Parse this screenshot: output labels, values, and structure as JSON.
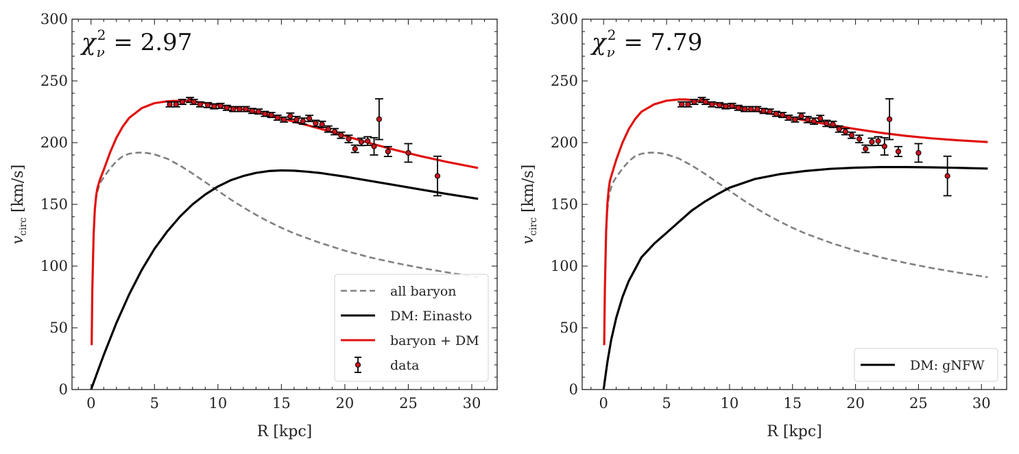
{
  "chart_data": [
    {
      "type": "line",
      "panel": "left",
      "annotation": {
        "symbol": "χ",
        "sub": "ν",
        "sup": "2",
        "text": " = 2.97"
      },
      "xlabel": "R [kpc]",
      "ylabel": {
        "main": "v",
        "sub": "circ",
        "unit": " [km/s]"
      },
      "xlim": [
        -1.5,
        32
      ],
      "ylim": [
        0,
        300
      ],
      "xticks": [
        0,
        5,
        10,
        15,
        20,
        25,
        30
      ],
      "yticks": [
        0,
        50,
        100,
        150,
        200,
        250,
        300
      ],
      "legend_position": "lower-right",
      "legend": [
        {
          "label": "all baryon",
          "style": "dashed",
          "color": "#808080",
          "series": "baryon"
        },
        {
          "label": "DM: Einasto",
          "style": "solid",
          "color": "#000000",
          "series": "dm"
        },
        {
          "label": "baryon + DM",
          "style": "solid",
          "color": "#e0110f",
          "series": "total"
        },
        {
          "label": "data",
          "style": "errorbar",
          "color": "#c8141e",
          "series": "data"
        }
      ],
      "series": [
        {
          "name": "all baryon",
          "key": "baryon",
          "color": "#808080",
          "dashed": true,
          "x": [
            0.05,
            0.1,
            0.2,
            0.3,
            0.4,
            0.5,
            0.7,
            1.0,
            1.5,
            2.0,
            2.5,
            3.0,
            3.5,
            4.0,
            4.5,
            5.0,
            6.0,
            7.0,
            8.0,
            9.0,
            10.0,
            11.0,
            12.0,
            13.0,
            14.0,
            15.0,
            16.0,
            18.0,
            20.0,
            22.0,
            24.0,
            26.0,
            28.0,
            30.5
          ],
          "y": [
            36,
            80,
            125,
            145,
            155,
            160,
            167,
            172,
            179,
            185,
            189,
            191,
            191.8,
            192,
            191.5,
            190.5,
            187,
            181.5,
            175,
            168,
            161,
            154,
            147.5,
            141.5,
            136,
            131,
            126.5,
            119,
            112.5,
            107,
            102.5,
            98.5,
            95,
            91
          ]
        },
        {
          "name": "DM: Einasto",
          "key": "dm",
          "color": "#000000",
          "dashed": false,
          "x": [
            0,
            0.5,
            1,
            2,
            3,
            4,
            5,
            6,
            7,
            8,
            9,
            10,
            11,
            12,
            13,
            14,
            15,
            16,
            17,
            18,
            19,
            20,
            22,
            24,
            26,
            28,
            30.5
          ],
          "y": [
            0,
            14,
            28,
            54,
            77,
            97,
            114,
            128,
            140,
            150,
            158,
            164.5,
            169.5,
            173,
            175.5,
            177,
            177.5,
            177.3,
            176.5,
            175.5,
            174,
            172.5,
            169,
            165.5,
            162,
            158.5,
            154.5
          ]
        },
        {
          "name": "baryon + DM",
          "key": "total",
          "color": "#e0110f",
          "dashed": false,
          "x": [
            0.05,
            0.1,
            0.2,
            0.3,
            0.4,
            0.5,
            0.7,
            1.0,
            1.5,
            2.0,
            2.5,
            3.0,
            4.0,
            5.0,
            6.0,
            7.0,
            8.0,
            9.0,
            10.0,
            12.0,
            14.0,
            16.0,
            18.0,
            20.0,
            22.0,
            24.0,
            26.0,
            28.0,
            30.5
          ],
          "y": [
            36,
            80,
            125,
            146,
            157,
            163,
            170,
            178,
            192,
            204,
            213,
            220,
            228,
            232,
            233.5,
            234,
            233.5,
            232,
            230.5,
            227,
            222.5,
            217,
            211.5,
            205.5,
            199.5,
            194,
            189,
            184.5,
            179.5
          ]
        }
      ]
    },
    {
      "type": "line",
      "panel": "right",
      "annotation": {
        "symbol": "χ",
        "sub": "ν",
        "sup": "2",
        "text": " = 7.79"
      },
      "xlabel": "R [kpc]",
      "ylabel": {
        "main": "v",
        "sub": "circ",
        "unit": " [km/s]"
      },
      "xlim": [
        -1.7,
        32
      ],
      "ylim": [
        0,
        300
      ],
      "xticks": [
        0,
        5,
        10,
        15,
        20,
        25,
        30
      ],
      "yticks": [
        0,
        50,
        100,
        150,
        200,
        250,
        300
      ],
      "legend_position": "lower-right",
      "legend": [
        {
          "label": "DM: gNFW",
          "style": "solid",
          "color": "#000000",
          "series": "dm"
        }
      ],
      "series": [
        {
          "name": "all baryon",
          "key": "baryon",
          "color": "#808080",
          "dashed": true,
          "x": [
            0.05,
            0.1,
            0.2,
            0.3,
            0.4,
            0.5,
            0.7,
            1.0,
            1.5,
            2.0,
            2.5,
            3.0,
            3.5,
            4.0,
            4.5,
            5.0,
            6.0,
            7.0,
            8.0,
            9.0,
            10.0,
            11.0,
            12.0,
            13.0,
            14.0,
            15.0,
            16.0,
            18.0,
            20.0,
            22.0,
            24.0,
            26.0,
            28.0,
            30.5
          ],
          "y": [
            36,
            80,
            125,
            145,
            155,
            160,
            167,
            172,
            179,
            185,
            189,
            191,
            191.8,
            192,
            191.5,
            190.5,
            187,
            181.5,
            175,
            168,
            161,
            154,
            147.5,
            141.5,
            136,
            131,
            126.5,
            119,
            112.5,
            107,
            102.5,
            98.5,
            95,
            91
          ]
        },
        {
          "name": "DM: gNFW",
          "key": "dm",
          "color": "#000000",
          "dashed": false,
          "x": [
            0,
            0.3,
            0.6,
            1,
            1.5,
            2,
            3,
            4,
            5,
            6,
            7,
            8,
            9,
            10,
            12,
            14,
            16,
            18,
            20,
            22,
            24,
            26,
            28,
            30.5
          ],
          "y": [
            0,
            22,
            40,
            58,
            75,
            88,
            107,
            118,
            127,
            136,
            145,
            152,
            158,
            163.5,
            170.5,
            174.5,
            177,
            178.8,
            179.7,
            180.2,
            180.2,
            180,
            179.6,
            179
          ]
        },
        {
          "name": "baryon + DM",
          "key": "total",
          "color": "#e0110f",
          "dashed": false,
          "x": [
            0.05,
            0.1,
            0.2,
            0.3,
            0.4,
            0.5,
            0.7,
            1.0,
            1.5,
            2.0,
            2.5,
            3.0,
            4.0,
            5.0,
            6.0,
            6.5,
            7.0,
            8.0,
            9.0,
            10.0,
            12.0,
            14.0,
            16.0,
            18.0,
            20.0,
            22.0,
            24.0,
            26.0,
            28.0,
            30.5
          ],
          "y": [
            36,
            82,
            128,
            150,
            162,
            169,
            176,
            186,
            200,
            211,
            219,
            225,
            231,
            234,
            235,
            235,
            234.5,
            233,
            231,
            229.5,
            226,
            222,
            218,
            214.5,
            211,
            208,
            205.5,
            203.5,
            202,
            200.5
          ]
        }
      ]
    }
  ],
  "observations": {
    "name": "data",
    "color": "#c8141e",
    "R": [
      6.2,
      6.7,
      7.2,
      7.8,
      8.1,
      8.6,
      9.2,
      9.7,
      10.2,
      10.7,
      11.2,
      11.7,
      12.2,
      12.7,
      13.2,
      13.7,
      14.2,
      14.7,
      15.2,
      15.7,
      16.2,
      16.7,
      17.2,
      17.7,
      18.2,
      18.7,
      19.2,
      19.7,
      20.3,
      20.8,
      21.3,
      21.8,
      22.3,
      22.7,
      23.4,
      25.0,
      27.3
    ],
    "v": [
      231,
      231,
      233,
      234.6,
      233,
      231,
      230.4,
      229.4,
      229.8,
      228.2,
      227.2,
      227.2,
      227.2,
      225.7,
      225.2,
      223.3,
      222.4,
      220.2,
      218.7,
      221.5,
      218.7,
      217.4,
      219.6,
      215.6,
      214.8,
      211,
      208.9,
      206,
      203,
      195,
      200.6,
      201.3,
      197,
      219,
      192.8,
      191.7,
      173
    ],
    "err": [
      2,
      2,
      2,
      2,
      2,
      2,
      2,
      2,
      2,
      2,
      2,
      2,
      2,
      2,
      2,
      2,
      2,
      2,
      2,
      2.5,
      2.5,
      2.5,
      2.5,
      2.5,
      2.5,
      2.5,
      2.5,
      2.5,
      3,
      3,
      3,
      3.5,
      7,
      16.5,
      4,
      7.5,
      16
    ]
  }
}
